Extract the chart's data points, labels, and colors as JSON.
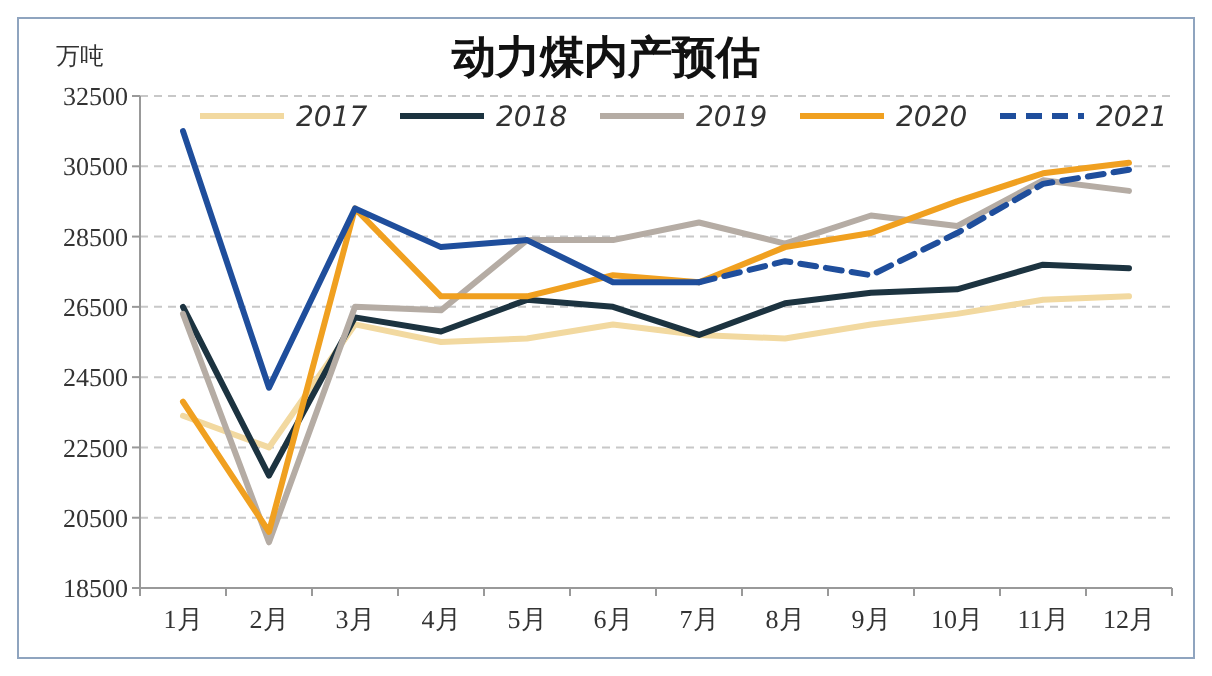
{
  "chart_data": {
    "type": "line",
    "title": "动力煤内产预估",
    "ylabel": "万吨",
    "categories": [
      "1月",
      "2月",
      "3月",
      "4月",
      "5月",
      "6月",
      "7月",
      "8月",
      "9月",
      "10月",
      "11月",
      "12月"
    ],
    "ylim": [
      18500,
      32500
    ],
    "yticks": [
      18500,
      20500,
      22500,
      24500,
      26500,
      28500,
      30500,
      32500
    ],
    "grid": "y",
    "legend": "top",
    "marker": "none",
    "series": [
      {
        "name": "2017",
        "color": "#f2d9a0",
        "values": [
          23400,
          22500,
          26000,
          25500,
          25600,
          26000,
          25700,
          25600,
          26000,
          26300,
          26700,
          26800
        ]
      },
      {
        "name": "2018",
        "color": "#1c3340",
        "values": [
          26500,
          21700,
          26200,
          25800,
          26700,
          26500,
          25700,
          26600,
          26900,
          27000,
          27700,
          27600
        ]
      },
      {
        "name": "2019",
        "color": "#b5aca4",
        "values": [
          26300,
          19800,
          26500,
          26400,
          28400,
          28400,
          28900,
          28300,
          29100,
          28800,
          30100,
          29800
        ]
      },
      {
        "name": "2020",
        "color": "#f0a020",
        "values": [
          23800,
          20100,
          29300,
          26800,
          26800,
          27400,
          27200,
          28200,
          28600,
          29500,
          30300,
          30600
        ]
      },
      {
        "color": "#1f4e9c",
        "line_style": "solid",
        "values": [
          31500,
          24200,
          29300,
          28200,
          28400,
          27200,
          27200,
          null,
          null,
          null,
          null,
          null
        ]
      },
      {
        "name": "2021",
        "color": "#1f4e9c",
        "line_style": "dashed",
        "values": [
          null,
          null,
          null,
          null,
          null,
          null,
          27200,
          27800,
          27400,
          28600,
          30000,
          30400
        ]
      }
    ]
  }
}
